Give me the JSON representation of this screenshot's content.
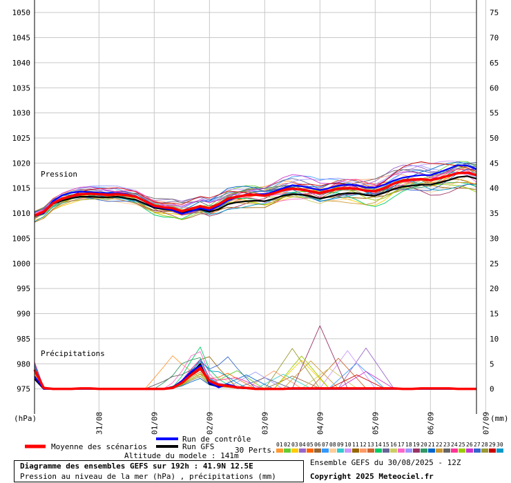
{
  "chart_data": {
    "type": "line",
    "title": "Diagramme des ensembles GEFS sur 192h : 41.9N 12.5E",
    "subtitle": "Pression au niveau de la mer (hPa) , précipitations (mm)",
    "altitude_label": "Altitude du modele : 141m",
    "left_axis": {
      "label": "(hPa)",
      "min": 970,
      "max": 1052.5,
      "ticks": [
        975,
        980,
        985,
        990,
        995,
        1000,
        1005,
        1010,
        1015,
        1020,
        1025,
        1030,
        1035,
        1040,
        1045,
        1050
      ]
    },
    "right_axis": {
      "label": "(mm)",
      "min": -5,
      "max": 77.5,
      "ticks": [
        0,
        5,
        10,
        15,
        20,
        25,
        30,
        35,
        40,
        45,
        50,
        55,
        60,
        65,
        70,
        75
      ]
    },
    "x_ticks": [
      "31/08",
      "01/09",
      "02/09",
      "03/09",
      "04/09",
      "05/09",
      "06/09",
      "07/09"
    ],
    "grid": true,
    "annotations": {
      "pressure": "Pression",
      "precip": "Précipitations"
    },
    "x_steps": 49,
    "mean_pressure": [
      1009.5,
      1010.3,
      1012.0,
      1012.9,
      1013.4,
      1013.8,
      1013.9,
      1013.8,
      1013.7,
      1013.8,
      1013.6,
      1013.3,
      1012.4,
      1011.5,
      1011.2,
      1011.0,
      1010.4,
      1010.9,
      1011.4,
      1011.0,
      1011.8,
      1012.9,
      1013.3,
      1013.6,
      1013.7,
      1013.5,
      1014.0,
      1014.6,
      1014.9,
      1014.7,
      1014.4,
      1014.0,
      1014.5,
      1014.9,
      1015.0,
      1014.9,
      1014.5,
      1014.4,
      1015.0,
      1015.9,
      1016.5,
      1016.7,
      1016.8,
      1016.6,
      1017.0,
      1017.5,
      1018.0,
      1018.1,
      1017.6
    ],
    "control_pressure": [
      1009.4,
      1010.0,
      1012.4,
      1013.6,
      1014.1,
      1014.3,
      1014.2,
      1014.1,
      1014.0,
      1014.0,
      1013.8,
      1013.4,
      1012.3,
      1011.3,
      1011.0,
      1010.6,
      1009.9,
      1010.4,
      1011.0,
      1010.6,
      1011.4,
      1012.6,
      1013.2,
      1013.6,
      1013.8,
      1013.8,
      1014.3,
      1015.0,
      1015.6,
      1015.4,
      1015.0,
      1014.6,
      1015.0,
      1015.5,
      1015.7,
      1015.6,
      1015.2,
      1015.1,
      1015.7,
      1016.5,
      1017.1,
      1017.4,
      1017.6,
      1017.6,
      1018.2,
      1018.9,
      1019.6,
      1019.5,
      1018.8
    ],
    "gfs_pressure": [
      1009.4,
      1010.1,
      1011.9,
      1012.5,
      1013.0,
      1013.3,
      1013.3,
      1013.2,
      1013.2,
      1013.3,
      1013.0,
      1012.7,
      1011.9,
      1011.1,
      1010.8,
      1010.6,
      1010.2,
      1010.5,
      1010.8,
      1010.3,
      1010.8,
      1011.8,
      1012.2,
      1012.4,
      1012.5,
      1012.4,
      1012.9,
      1013.5,
      1013.8,
      1013.7,
      1013.4,
      1012.9,
      1013.3,
      1013.8,
      1014.0,
      1014.0,
      1013.6,
      1013.5,
      1014.1,
      1014.8,
      1015.3,
      1015.5,
      1015.7,
      1015.7,
      1016.1,
      1016.6,
      1017.2,
      1017.4,
      1016.9
    ],
    "mean_precip": [
      3.8,
      0.2,
      0,
      0,
      0,
      0.1,
      0.1,
      0,
      0,
      0,
      0,
      0,
      0,
      0,
      0,
      0.2,
      1.2,
      2.8,
      4.2,
      1.6,
      0.8,
      0.6,
      0.3,
      0.2,
      0,
      0,
      0,
      0,
      0.1,
      0.1,
      0.1,
      0.1,
      0.1,
      0.1,
      0.1,
      0.1,
      0.1,
      0.1,
      0.1,
      0.1,
      0,
      0,
      0.1,
      0.1,
      0.1,
      0.1,
      0,
      0,
      0
    ],
    "control_precip": [
      2.5,
      0,
      0,
      0,
      0,
      0,
      0,
      0,
      0,
      0,
      0,
      0,
      0,
      0,
      0,
      0.3,
      1.6,
      3.4,
      4.6,
      1.2,
      0.3,
      0.9,
      0.4,
      0.2,
      0.1,
      0,
      0,
      0,
      0,
      0,
      0,
      0,
      0,
      0,
      0,
      0,
      0,
      0,
      0,
      0,
      0,
      0,
      0,
      0,
      0,
      0,
      0,
      0,
      0
    ],
    "gfs_precip": [
      2.0,
      0,
      0,
      0,
      0,
      0,
      0,
      0,
      0,
      0,
      0,
      0,
      0,
      0,
      0,
      0.4,
      1.4,
      3.0,
      5.0,
      1.0,
      0.4,
      0.8,
      0.2,
      0.1,
      0,
      0,
      0,
      0,
      0,
      0,
      0,
      0,
      0,
      0,
      0,
      0,
      0,
      0,
      0,
      0,
      0,
      0,
      0,
      0,
      0,
      0,
      0,
      0,
      0
    ],
    "perturbation_spread": {
      "amplitude_hPa": 2.6,
      "peak_precip_mm": [
        6.5,
        7.5,
        12.5,
        8.0,
        6.0,
        5.5,
        5.0,
        4.0
      ]
    },
    "legend": {
      "mean": "Moyenne des scénarios",
      "control": "Run de contrôle",
      "gfs": "Run GFS",
      "perts": "30 Perts.",
      "pert_numbers": [
        "01",
        "02",
        "03",
        "04",
        "05",
        "06",
        "07",
        "08",
        "09",
        "10",
        "11",
        "12",
        "13",
        "14",
        "15",
        "16",
        "17",
        "18",
        "19",
        "20",
        "21",
        "22",
        "23",
        "24",
        "25",
        "26",
        "27",
        "28",
        "29",
        "30"
      ]
    },
    "colors": {
      "mean": "#ff0000",
      "control": "#0000ff",
      "gfs": "#000000",
      "perts": [
        "#ff9933",
        "#66cc33",
        "#ffcc00",
        "#9966cc",
        "#ff6600",
        "#996633",
        "#3399ff",
        "#ffcc99",
        "#33cccc",
        "#cc99ff",
        "#996600",
        "#ff9966",
        "#cc6633",
        "#00cc66",
        "#666699",
        "#cccc66",
        "#ff66cc",
        "#9999ff",
        "#993366",
        "#339966",
        "#0066cc",
        "#cc9933",
        "#666666",
        "#ff3399",
        "#99cc00",
        "#cc33cc",
        "#3366cc",
        "#999933",
        "#cc0000",
        "#0099cc"
      ]
    }
  },
  "footer": {
    "ensemble_label": "Ensemble GEFS du 30/08/2025 - 12Z",
    "copyright": "Copyright 2025 Meteociel.fr"
  }
}
